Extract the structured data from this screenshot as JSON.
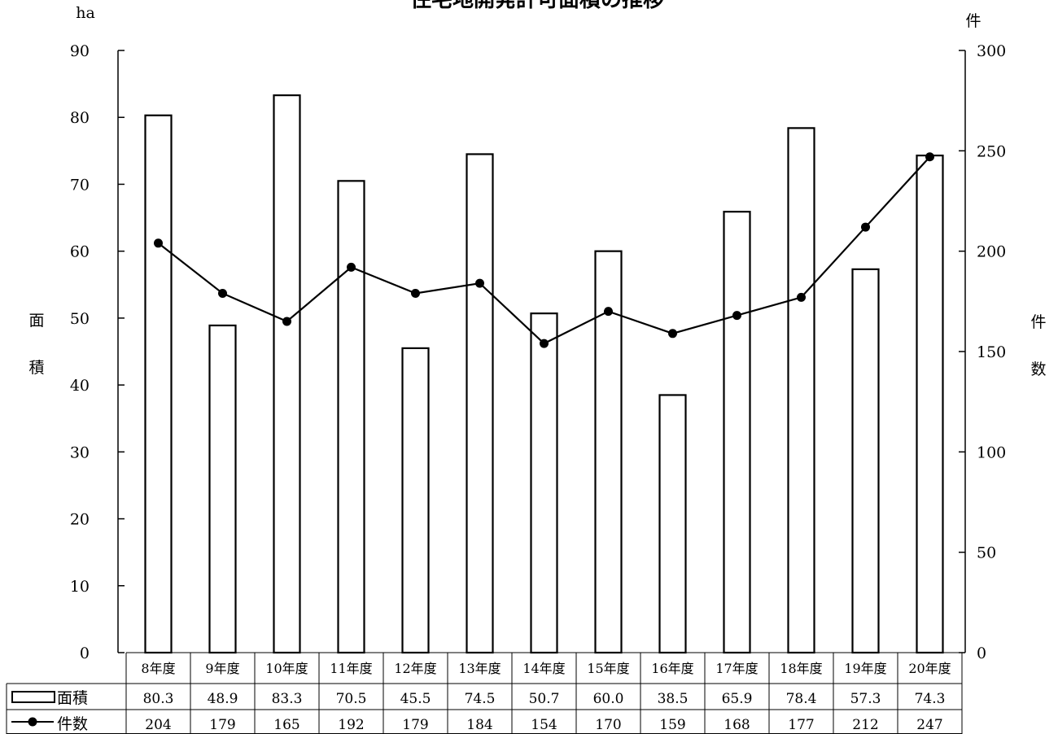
{
  "chart_data": {
    "type": "bar",
    "title": "住宅地開発許可面積の推移",
    "categories": [
      "8年度",
      "9年度",
      "10年度",
      "11年度",
      "12年度",
      "13年度",
      "14年度",
      "15年度",
      "16年度",
      "17年度",
      "18年度",
      "19年度",
      "20年度"
    ],
    "series": [
      {
        "name": "面積",
        "type": "bar",
        "axis": "left",
        "values": [
          80.3,
          48.9,
          83.3,
          70.5,
          45.5,
          74.5,
          50.7,
          60.0,
          38.5,
          65.9,
          78.4,
          57.3,
          74.3
        ],
        "labels": [
          "80.3",
          "48.9",
          "83.3",
          "70.5",
          "45.5",
          "74.5",
          "50.7",
          "60.0",
          "38.5",
          "65.9",
          "78.4",
          "57.3",
          "74.3"
        ]
      },
      {
        "name": "件数",
        "type": "line",
        "axis": "right",
        "values": [
          204,
          179,
          165,
          192,
          179,
          184,
          154,
          170,
          159,
          168,
          177,
          212,
          247
        ],
        "labels": [
          "204",
          "179",
          "165",
          "192",
          "179",
          "184",
          "154",
          "170",
          "159",
          "168",
          "177",
          "212",
          "247"
        ]
      }
    ],
    "y_left": {
      "unit": "ha",
      "label": [
        "面",
        "積"
      ],
      "ylim": [
        0,
        90
      ],
      "ticks": [
        0,
        10,
        20,
        30,
        40,
        50,
        60,
        70,
        80,
        90
      ]
    },
    "y_right": {
      "unit": "件",
      "label": [
        "件",
        "数"
      ],
      "ylim": [
        0,
        300
      ],
      "ticks": [
        0,
        50,
        100,
        150,
        200,
        250,
        300
      ]
    },
    "legend": "data-table-below",
    "grid": false,
    "colors": {
      "bar_fill": "#ffffff",
      "bar_stroke": "#000000",
      "line": "#000000",
      "axis": "#000000"
    }
  }
}
